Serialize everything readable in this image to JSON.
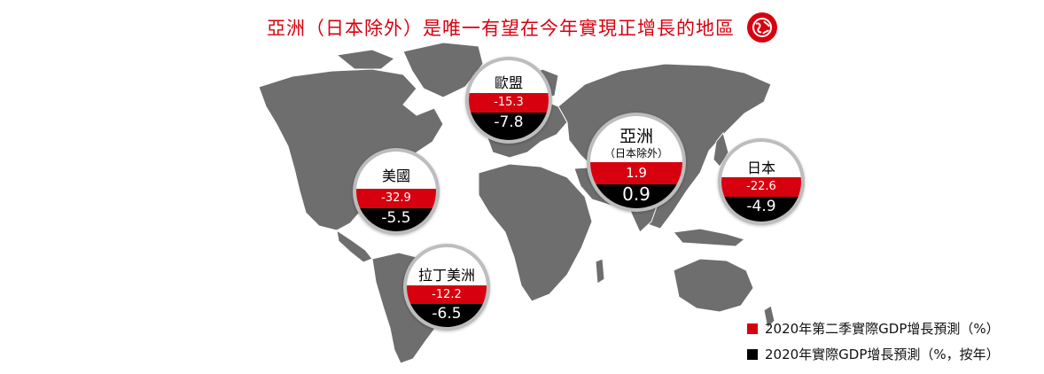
{
  "title": "亞洲（日本除外）是唯一有望在今年實現正增長的地區",
  "regions": [
    {
      "id": "eu",
      "name": "歐盟",
      "q2": "-15.3",
      "year": "-7.8"
    },
    {
      "id": "us",
      "name": "美國",
      "q2": "-32.9",
      "year": "-5.5"
    },
    {
      "id": "asia",
      "name": "亞洲",
      "sub": "（日本除外）",
      "q2": "1.9",
      "year": "0.9"
    },
    {
      "id": "jp",
      "name": "日本",
      "q2": "-22.6",
      "year": "-4.9"
    },
    {
      "id": "latam",
      "name": "拉丁美洲",
      "q2": "-12.2",
      "year": "-6.5"
    }
  ],
  "legend": [
    {
      "label": "2020年第二季實際GDP增長預測（%）",
      "color": "#d7000f"
    },
    {
      "label": "2020年實際GDP增長預測（%，按年）",
      "color": "#000000"
    }
  ],
  "colors": {
    "accent": "#d7000f",
    "land": "#6e6e6e"
  },
  "icons": {
    "title_badge": "globe-icon"
  }
}
